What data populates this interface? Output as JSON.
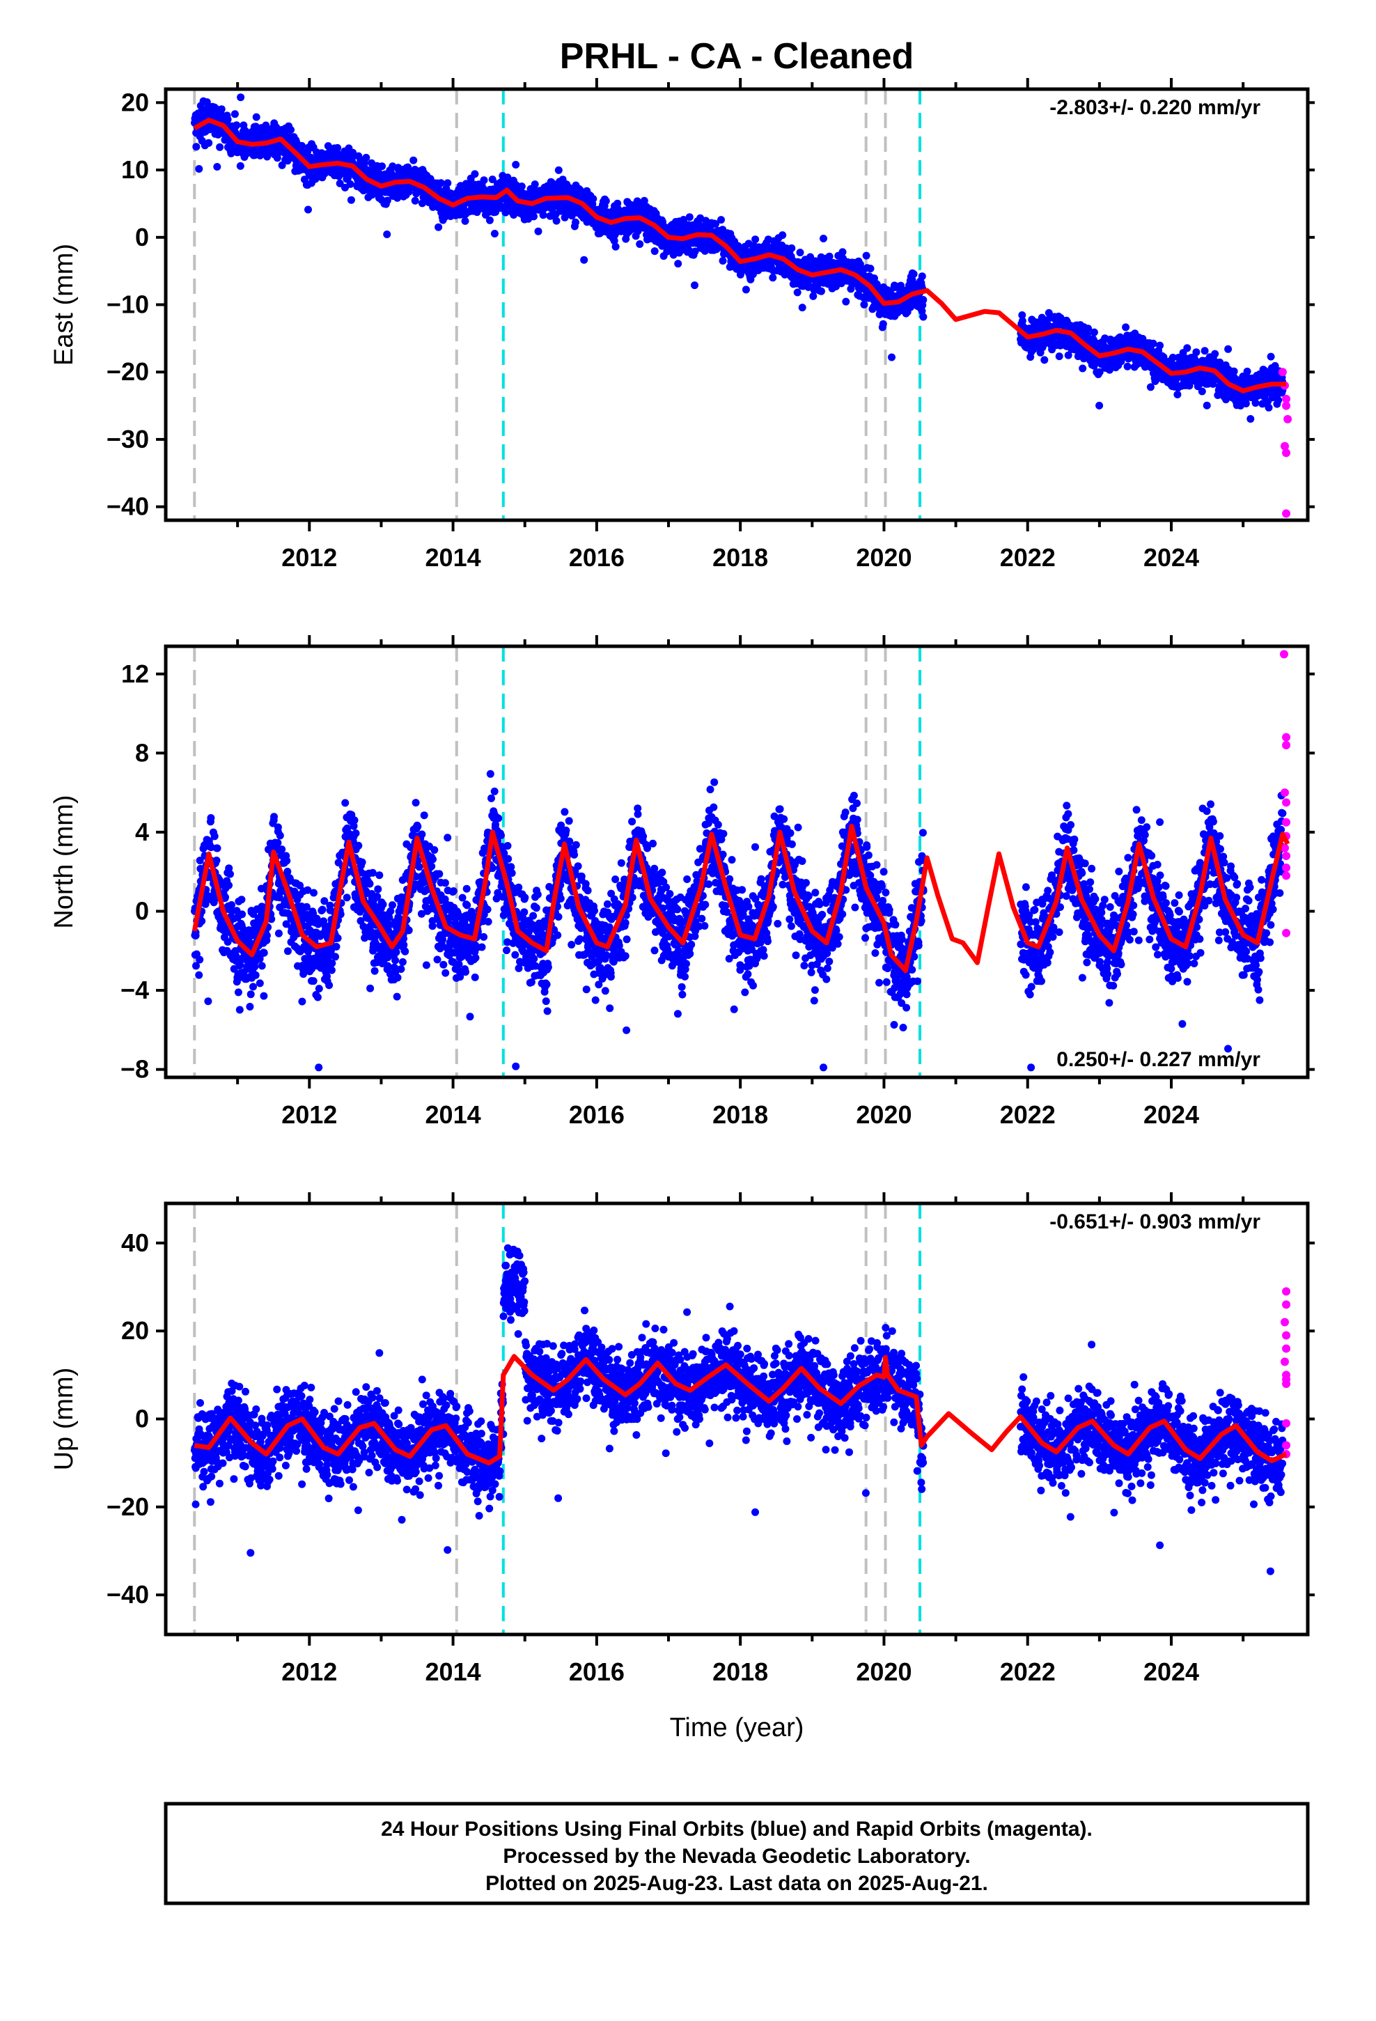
{
  "title": "PRHL  - CA - Cleaned",
  "x_label": "Time (year)",
  "footer": {
    "line1": "24 Hour Positions Using Final Orbits (blue) and Rapid Orbits (magenta).",
    "line2": "Processed by the Nevada Geodetic Laboratory.",
    "line3": "Plotted on 2025-Aug-23. Last data on 2025-Aug-21."
  },
  "colors": {
    "final_orbits": "#0000ff",
    "rapid_orbits": "#ff00ff",
    "model": "#ff0000",
    "equipment_change": "#c0c0c0",
    "earthquake": "#00e0e0"
  },
  "chart_data": [
    {
      "type": "scatter",
      "panel": "east",
      "ylabel": "East (mm)",
      "rate_text": "-2.803+/- 0.220 mm/yr",
      "xlim": [
        2010.0,
        2025.9
      ],
      "ylim": [
        -42,
        22
      ],
      "x_ticks": [
        2012,
        2014,
        2016,
        2018,
        2020,
        2022,
        2024
      ],
      "y_ticks": [
        20,
        10,
        0,
        -10,
        -20,
        -30,
        -40
      ],
      "grid": false,
      "gray_dashed_lines": [
        2010.4,
        2014.05,
        2019.75,
        2020.02
      ],
      "cyan_dashed_lines": [
        2014.7,
        2020.5
      ],
      "model_curve": [
        [
          2010.4,
          16.2
        ],
        [
          2010.6,
          17.4
        ],
        [
          2010.8,
          16.6
        ],
        [
          2011.0,
          14.2
        ],
        [
          2011.2,
          13.8
        ],
        [
          2011.4,
          14.0
        ],
        [
          2011.6,
          14.6
        ],
        [
          2011.8,
          12.6
        ],
        [
          2012.0,
          10.5
        ],
        [
          2012.2,
          10.8
        ],
        [
          2012.4,
          11.0
        ],
        [
          2012.6,
          10.6
        ],
        [
          2012.8,
          8.6
        ],
        [
          2013.0,
          7.6
        ],
        [
          2013.2,
          8.2
        ],
        [
          2013.4,
          8.3
        ],
        [
          2013.6,
          7.4
        ],
        [
          2013.8,
          5.8
        ],
        [
          2014.0,
          4.8
        ],
        [
          2014.2,
          5.8
        ],
        [
          2014.4,
          6.0
        ],
        [
          2014.6,
          5.9
        ],
        [
          2014.75,
          7.0
        ],
        [
          2014.9,
          5.4
        ],
        [
          2015.1,
          5.0
        ],
        [
          2015.3,
          5.8
        ],
        [
          2015.6,
          5.9
        ],
        [
          2015.8,
          5.0
        ],
        [
          2016.0,
          3.0
        ],
        [
          2016.2,
          2.2
        ],
        [
          2016.4,
          2.8
        ],
        [
          2016.6,
          2.9
        ],
        [
          2016.8,
          1.8
        ],
        [
          2017.0,
          0.0
        ],
        [
          2017.2,
          -0.2
        ],
        [
          2017.4,
          0.4
        ],
        [
          2017.6,
          0.3
        ],
        [
          2017.8,
          -1.3
        ],
        [
          2018.0,
          -3.6
        ],
        [
          2018.2,
          -3.2
        ],
        [
          2018.4,
          -2.6
        ],
        [
          2018.6,
          -3.2
        ],
        [
          2018.8,
          -4.8
        ],
        [
          2019.0,
          -5.6
        ],
        [
          2019.2,
          -5.2
        ],
        [
          2019.4,
          -4.8
        ],
        [
          2019.6,
          -5.6
        ],
        [
          2019.8,
          -7.2
        ],
        [
          2020.0,
          -9.8
        ],
        [
          2020.2,
          -9.6
        ],
        [
          2020.4,
          -8.4
        ],
        [
          2020.6,
          -7.9
        ],
        [
          2020.8,
          -9.8
        ],
        [
          2021.0,
          -12.2
        ],
        [
          2021.2,
          -11.6
        ],
        [
          2021.4,
          -11.0
        ],
        [
          2021.6,
          -11.2
        ],
        [
          2021.8,
          -13.0
        ],
        [
          2022.0,
          -14.8
        ],
        [
          2022.2,
          -14.4
        ],
        [
          2022.4,
          -13.8
        ],
        [
          2022.6,
          -14.2
        ],
        [
          2022.8,
          -16.0
        ],
        [
          2023.0,
          -17.6
        ],
        [
          2023.2,
          -17.2
        ],
        [
          2023.4,
          -16.6
        ],
        [
          2023.6,
          -17.0
        ],
        [
          2023.8,
          -18.6
        ],
        [
          2024.0,
          -20.2
        ],
        [
          2024.2,
          -20.0
        ],
        [
          2024.4,
          -19.4
        ],
        [
          2024.6,
          -19.8
        ],
        [
          2024.8,
          -21.8
        ],
        [
          2025.0,
          -22.8
        ],
        [
          2025.2,
          -22.2
        ],
        [
          2025.4,
          -21.8
        ],
        [
          2025.6,
          -21.8
        ]
      ],
      "final_orbit_segments": [
        [
          2010.4,
          2020.55
        ],
        [
          2021.9,
          2025.55
        ]
      ],
      "rapid_orbit_points": [
        [
          2025.55,
          -20
        ],
        [
          2025.58,
          -22
        ],
        [
          2025.6,
          -24
        ],
        [
          2025.6,
          -25
        ],
        [
          2025.62,
          -27
        ],
        [
          2025.58,
          -31
        ],
        [
          2025.6,
          -32
        ],
        [
          2025.6,
          -41
        ]
      ]
    },
    {
      "type": "scatter",
      "panel": "north",
      "ylabel": "North (mm)",
      "rate_text": "0.250+/- 0.227 mm/yr",
      "xlim": [
        2010.0,
        2025.9
      ],
      "ylim": [
        -8.4,
        13.4
      ],
      "x_ticks": [
        2012,
        2014,
        2016,
        2018,
        2020,
        2022,
        2024
      ],
      "y_ticks": [
        12,
        8,
        4,
        0,
        -4,
        -8
      ],
      "grid": false,
      "gray_dashed_lines": [
        2010.4,
        2014.05,
        2019.75,
        2020.02
      ],
      "cyan_dashed_lines": [
        2014.7,
        2020.5
      ],
      "model_curve": [
        [
          2010.4,
          -1.0
        ],
        [
          2010.6,
          2.9
        ],
        [
          2010.8,
          0.0
        ],
        [
          2011.0,
          -1.5
        ],
        [
          2011.2,
          -2.2
        ],
        [
          2011.4,
          -0.5
        ],
        [
          2011.5,
          3.0
        ],
        [
          2011.7,
          1.0
        ],
        [
          2011.9,
          -1.2
        ],
        [
          2012.1,
          -1.8
        ],
        [
          2012.3,
          -1.6
        ],
        [
          2012.4,
          0.5
        ],
        [
          2012.55,
          3.5
        ],
        [
          2012.75,
          0.5
        ],
        [
          2012.95,
          -0.6
        ],
        [
          2013.15,
          -1.8
        ],
        [
          2013.3,
          -1.0
        ],
        [
          2013.5,
          3.7
        ],
        [
          2013.7,
          1.2
        ],
        [
          2013.9,
          -0.8
        ],
        [
          2014.1,
          -1.2
        ],
        [
          2014.3,
          -1.4
        ],
        [
          2014.45,
          1.5
        ],
        [
          2014.55,
          4.0
        ],
        [
          2014.75,
          1.4
        ],
        [
          2014.9,
          -1.0
        ],
        [
          2015.1,
          -1.6
        ],
        [
          2015.3,
          -2.0
        ],
        [
          2015.4,
          0.4
        ],
        [
          2015.55,
          3.4
        ],
        [
          2015.75,
          0.2
        ],
        [
          2016.0,
          -1.6
        ],
        [
          2016.15,
          -1.8
        ],
        [
          2016.4,
          0.3
        ],
        [
          2016.55,
          3.6
        ],
        [
          2016.75,
          0.6
        ],
        [
          2017.0,
          -0.8
        ],
        [
          2017.2,
          -1.6
        ],
        [
          2017.45,
          1.2
        ],
        [
          2017.6,
          3.9
        ],
        [
          2017.8,
          1.2
        ],
        [
          2018.0,
          -1.2
        ],
        [
          2018.2,
          -1.4
        ],
        [
          2018.4,
          0.8
        ],
        [
          2018.55,
          4.0
        ],
        [
          2018.75,
          1.0
        ],
        [
          2019.0,
          -1.0
        ],
        [
          2019.2,
          -1.6
        ],
        [
          2019.4,
          1.0
        ],
        [
          2019.55,
          4.3
        ],
        [
          2019.75,
          1.2
        ],
        [
          2020.0,
          -0.6
        ],
        [
          2020.1,
          -2.2
        ],
        [
          2020.3,
          -3.0
        ],
        [
          2020.45,
          -0.5
        ],
        [
          2020.6,
          2.7
        ],
        [
          2020.75,
          0.8
        ],
        [
          2020.95,
          -1.4
        ],
        [
          2021.1,
          -1.6
        ],
        [
          2021.3,
          -2.6
        ],
        [
          2021.45,
          0.2
        ],
        [
          2021.6,
          2.9
        ],
        [
          2021.8,
          0.2
        ],
        [
          2022.0,
          -1.6
        ],
        [
          2022.15,
          -1.8
        ],
        [
          2022.4,
          0.5
        ],
        [
          2022.55,
          3.2
        ],
        [
          2022.75,
          0.6
        ],
        [
          2023.0,
          -1.2
        ],
        [
          2023.2,
          -2.0
        ],
        [
          2023.4,
          0.5
        ],
        [
          2023.55,
          3.4
        ],
        [
          2023.75,
          0.7
        ],
        [
          2024.0,
          -1.4
        ],
        [
          2024.2,
          -1.8
        ],
        [
          2024.4,
          0.8
        ],
        [
          2024.55,
          3.7
        ],
        [
          2024.75,
          0.6
        ],
        [
          2025.0,
          -1.2
        ],
        [
          2025.2,
          -1.6
        ],
        [
          2025.4,
          1.6
        ],
        [
          2025.55,
          3.9
        ],
        [
          2025.62,
          3.4
        ]
      ],
      "final_orbit_segments": [
        [
          2010.4,
          2020.55
        ],
        [
          2021.9,
          2025.55
        ]
      ],
      "rapid_orbit_points": [
        [
          2025.57,
          13.0
        ],
        [
          2025.6,
          8.8
        ],
        [
          2025.6,
          8.4
        ],
        [
          2025.58,
          6.0
        ],
        [
          2025.6,
          5.5
        ],
        [
          2025.6,
          4.5
        ],
        [
          2025.6,
          3.8
        ],
        [
          2025.58,
          3.2
        ],
        [
          2025.6,
          2.8
        ],
        [
          2025.6,
          2.2
        ],
        [
          2025.6,
          1.8
        ],
        [
          2025.6,
          -1.1
        ]
      ]
    },
    {
      "type": "scatter",
      "panel": "up",
      "ylabel": "Up (mm)",
      "rate_text": "-0.651+/- 0.903 mm/yr",
      "xlim": [
        2010.0,
        2025.9
      ],
      "ylim": [
        -49,
        49
      ],
      "x_ticks": [
        2012,
        2014,
        2016,
        2018,
        2020,
        2022,
        2024
      ],
      "y_ticks": [
        40,
        20,
        0,
        -20,
        -40
      ],
      "grid": false,
      "gray_dashed_lines": [
        2010.4,
        2014.05,
        2019.75,
        2020.02
      ],
      "cyan_dashed_lines": [
        2014.7,
        2020.5
      ],
      "model_curve": [
        [
          2010.4,
          -6.0
        ],
        [
          2010.6,
          -6.5
        ],
        [
          2010.9,
          0.2
        ],
        [
          2011.2,
          -5.5
        ],
        [
          2011.4,
          -8.0
        ],
        [
          2011.7,
          -1.5
        ],
        [
          2011.9,
          0.0
        ],
        [
          2012.2,
          -6.5
        ],
        [
          2012.4,
          -8.0
        ],
        [
          2012.7,
          -2.0
        ],
        [
          2012.9,
          -1.0
        ],
        [
          2013.2,
          -7.0
        ],
        [
          2013.4,
          -8.5
        ],
        [
          2013.7,
          -2.5
        ],
        [
          2013.9,
          -1.5
        ],
        [
          2014.2,
          -8.0
        ],
        [
          2014.5,
          -10.0
        ],
        [
          2014.65,
          -8.5
        ],
        [
          2014.7,
          10.0
        ],
        [
          2014.85,
          14.2
        ],
        [
          2015.1,
          10.0
        ],
        [
          2015.4,
          6.5
        ],
        [
          2015.6,
          9.0
        ],
        [
          2015.85,
          13.5
        ],
        [
          2016.1,
          9.0
        ],
        [
          2016.4,
          5.5
        ],
        [
          2016.6,
          8.0
        ],
        [
          2016.85,
          12.7
        ],
        [
          2017.1,
          8.0
        ],
        [
          2017.3,
          6.5
        ],
        [
          2017.55,
          9.5
        ],
        [
          2017.8,
          12.3
        ],
        [
          2018.1,
          8.0
        ],
        [
          2018.4,
          4.0
        ],
        [
          2018.6,
          7.0
        ],
        [
          2018.85,
          11.5
        ],
        [
          2019.1,
          7.0
        ],
        [
          2019.4,
          3.5
        ],
        [
          2019.65,
          7.5
        ],
        [
          2019.9,
          10.0
        ],
        [
          2020.0,
          9.5
        ],
        [
          2020.02,
          14.0
        ],
        [
          2020.05,
          10.0
        ],
        [
          2020.2,
          6.5
        ],
        [
          2020.45,
          5.0
        ],
        [
          2020.52,
          -6.0
        ],
        [
          2020.6,
          -4.0
        ],
        [
          2020.9,
          1.2
        ],
        [
          2021.2,
          -3.0
        ],
        [
          2021.5,
          -7.0
        ],
        [
          2021.7,
          -3.0
        ],
        [
          2021.9,
          0.5
        ],
        [
          2022.2,
          -5.5
        ],
        [
          2022.4,
          -7.5
        ],
        [
          2022.7,
          -2.0
        ],
        [
          2022.9,
          -0.5
        ],
        [
          2023.2,
          -6.0
        ],
        [
          2023.4,
          -8.0
        ],
        [
          2023.7,
          -2.0
        ],
        [
          2023.9,
          -0.5
        ],
        [
          2024.2,
          -7.0
        ],
        [
          2024.4,
          -9.0
        ],
        [
          2024.7,
          -3.5
        ],
        [
          2024.9,
          -1.5
        ],
        [
          2025.2,
          -7.5
        ],
        [
          2025.4,
          -9.5
        ],
        [
          2025.6,
          -8.0
        ]
      ],
      "final_orbit_segments": [
        [
          2010.4,
          2020.55
        ],
        [
          2021.9,
          2025.55
        ]
      ],
      "rapid_orbit_points": [
        [
          2025.6,
          29
        ],
        [
          2025.6,
          26
        ],
        [
          2025.58,
          22
        ],
        [
          2025.6,
          19
        ],
        [
          2025.6,
          16
        ],
        [
          2025.58,
          13
        ],
        [
          2025.6,
          10
        ],
        [
          2025.6,
          9
        ],
        [
          2025.6,
          8
        ],
        [
          2025.6,
          -1
        ],
        [
          2025.6,
          -6
        ],
        [
          2025.6,
          -8
        ]
      ]
    }
  ]
}
